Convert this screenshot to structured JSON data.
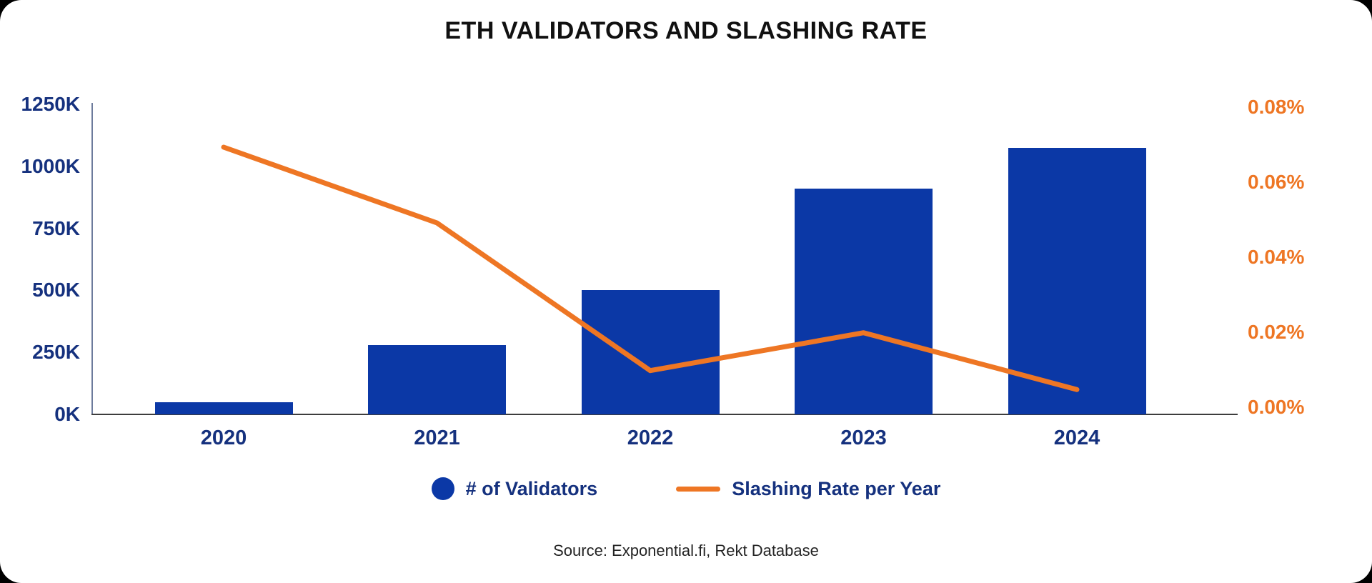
{
  "title": "ETH VALIDATORS AND SLASHING RATE",
  "source": "Source: Exponential.fi, Rekt Database",
  "legend": {
    "validators_label": "# of Validators",
    "slashing_label": "Slashing Rate per Year"
  },
  "colors": {
    "bar": "#0B38A6",
    "line": "#EE7624",
    "left_axis_text": "#15317E",
    "right_axis_text": "#EE7624",
    "title_text": "#111111",
    "source_text": "#242424"
  },
  "chart_data": {
    "type": "bar",
    "subtype": "combo-bar-line-dual-axis",
    "title": "ETH VALIDATORS AND SLASHING RATE",
    "categories": [
      "2020",
      "2021",
      "2022",
      "2023",
      "2024"
    ],
    "series": [
      {
        "name": "# of Validators",
        "type": "bar",
        "axis": "left",
        "unit": "validators (thousands)",
        "values_thousands": [
          50,
          280,
          500,
          910,
          1075
        ],
        "color": "#0B38A6"
      },
      {
        "name": "Slashing Rate per Year",
        "type": "line",
        "axis": "right",
        "unit": "percent",
        "values_percent": [
          0.07,
          0.05,
          0.011,
          0.021,
          0.006
        ],
        "color": "#EE7624"
      }
    ],
    "left_axis": {
      "tick_labels_top_to_bottom": [
        "1250K",
        "1000K",
        "750K",
        "500K",
        "250K",
        "0K"
      ],
      "min": 0,
      "max_thousands": 1250
    },
    "right_axis": {
      "tick_labels_top_to_bottom": [
        "0.08%",
        "0.06%",
        "0.04%",
        "0.02%",
        "0.00%"
      ],
      "min": 0,
      "max_percent": 0.08
    },
    "grid": false,
    "legend_position": "bottom",
    "xlabel": "",
    "ylabel_left": "",
    "ylabel_right": ""
  }
}
